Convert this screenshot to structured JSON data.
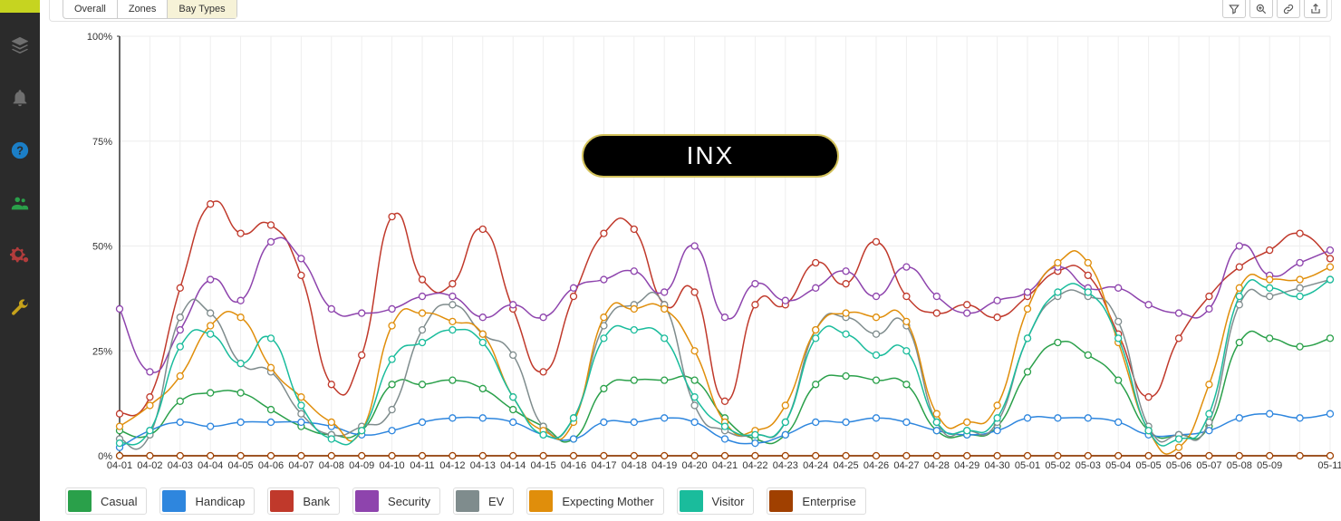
{
  "sidebar": {
    "items": [
      {
        "name": "layers-icon"
      },
      {
        "name": "bell-icon"
      },
      {
        "name": "help-icon"
      },
      {
        "name": "users-icon"
      },
      {
        "name": "gears-icon"
      },
      {
        "name": "wrench-icon"
      }
    ]
  },
  "tabs": {
    "items": [
      {
        "label": "Overall",
        "active": false
      },
      {
        "label": "Zones",
        "active": false
      },
      {
        "label": "Bay Types",
        "active": true
      }
    ]
  },
  "toolbar": {
    "items": [
      {
        "name": "filter-icon"
      },
      {
        "name": "zoom-icon"
      },
      {
        "name": "link-icon"
      },
      {
        "name": "export-icon"
      }
    ]
  },
  "overlay": {
    "label": "INX"
  },
  "chart": {
    "type": "line",
    "background_color": "#ffffff",
    "grid_color": "#eeeeee",
    "axis_color": "#333333",
    "label_color": "#333333",
    "label_fontsize": 11,
    "marker_radius": 3.5,
    "line_width": 1.5,
    "ylim": [
      0,
      100
    ],
    "ytick_step": 25,
    "ytick_suffix": "%",
    "categories": [
      "04-01",
      "04-02",
      "04-03",
      "04-04",
      "04-05",
      "04-06",
      "04-07",
      "04-08",
      "04-09",
      "04-10",
      "04-11",
      "04-12",
      "04-13",
      "04-14",
      "04-15",
      "04-16",
      "04-17",
      "04-18",
      "04-19",
      "04-20",
      "04-21",
      "04-22",
      "04-23",
      "04-24",
      "04-25",
      "04-26",
      "04-27",
      "04-28",
      "04-29",
      "04-30",
      "05-01",
      "05-02",
      "05-03",
      "05-04",
      "05-05",
      "05-06",
      "05-07",
      "05-08",
      "05-09",
      "",
      "05-11"
    ],
    "series": [
      {
        "name": "Casual",
        "color": "#2aa04a",
        "values": [
          6,
          5,
          13,
          15,
          15,
          11,
          7,
          5,
          6,
          17,
          17,
          18,
          16,
          11,
          7,
          4,
          16,
          18,
          18,
          18,
          9,
          4,
          5,
          17,
          19,
          18,
          17,
          6,
          5,
          7,
          20,
          27,
          24,
          18,
          6,
          5,
          7,
          27,
          28,
          26,
          28
        ]
      },
      {
        "name": "Handicap",
        "color": "#2e86de",
        "values": [
          2,
          6,
          8,
          7,
          8,
          8,
          8,
          7,
          5,
          6,
          8,
          9,
          9,
          8,
          5,
          4,
          8,
          8,
          9,
          8,
          4,
          3,
          5,
          8,
          8,
          9,
          8,
          6,
          5,
          6,
          9,
          9,
          9,
          8,
          5,
          5,
          6,
          9,
          10,
          9,
          10
        ]
      },
      {
        "name": "Bank",
        "color": "#c0392b",
        "values": [
          10,
          14,
          40,
          60,
          53,
          55,
          43,
          17,
          24,
          57,
          42,
          41,
          54,
          35,
          20,
          38,
          53,
          54,
          36,
          39,
          13,
          36,
          36,
          46,
          41,
          51,
          38,
          34,
          36,
          33,
          38,
          44,
          43,
          29,
          14,
          28,
          38,
          45,
          49,
          53,
          47
        ]
      },
      {
        "name": "Security",
        "color": "#8e44ad",
        "values": [
          35,
          20,
          30,
          42,
          37,
          51,
          47,
          35,
          34,
          35,
          38,
          38,
          33,
          36,
          33,
          40,
          42,
          44,
          39,
          50,
          33,
          41,
          37,
          40,
          44,
          38,
          45,
          38,
          34,
          37,
          39,
          45,
          40,
          40,
          36,
          34,
          35,
          50,
          43,
          46,
          49
        ]
      },
      {
        "name": "EV",
        "color": "#7f8c8d",
        "values": [
          4,
          5,
          33,
          34,
          22,
          20,
          10,
          5,
          7,
          11,
          30,
          36,
          29,
          24,
          7,
          9,
          31,
          36,
          36,
          12,
          6,
          5,
          8,
          30,
          33,
          29,
          31,
          8,
          6,
          8,
          28,
          38,
          38,
          32,
          7,
          5,
          8,
          36,
          38,
          40,
          42
        ]
      },
      {
        "name": "Expecting Mother",
        "color": "#e08e0b",
        "values": [
          7,
          12,
          19,
          31,
          33,
          21,
          14,
          8,
          6,
          31,
          34,
          32,
          29,
          14,
          6,
          8,
          33,
          35,
          35,
          25,
          8,
          6,
          12,
          30,
          34,
          33,
          32,
          10,
          8,
          12,
          35,
          46,
          46,
          27,
          6,
          2,
          17,
          40,
          42,
          42,
          45
        ]
      },
      {
        "name": "Visitor",
        "color": "#1abc9c",
        "values": [
          3,
          6,
          26,
          29,
          22,
          28,
          12,
          4,
          6,
          23,
          27,
          30,
          27,
          14,
          5,
          9,
          28,
          30,
          28,
          14,
          7,
          5,
          8,
          28,
          29,
          24,
          25,
          8,
          6,
          9,
          28,
          39,
          39,
          28,
          6,
          4,
          10,
          38,
          40,
          38,
          42
        ]
      },
      {
        "name": "Enterprise",
        "color": "#a04000",
        "values": [
          0,
          0,
          0,
          0,
          0,
          0,
          0,
          0,
          0,
          0,
          0,
          0,
          0,
          0,
          0,
          0,
          0,
          0,
          0,
          0,
          0,
          0,
          0,
          0,
          0,
          0,
          0,
          0,
          0,
          0,
          0,
          0,
          0,
          0,
          0,
          0,
          0,
          0,
          0,
          0,
          0
        ]
      }
    ]
  }
}
